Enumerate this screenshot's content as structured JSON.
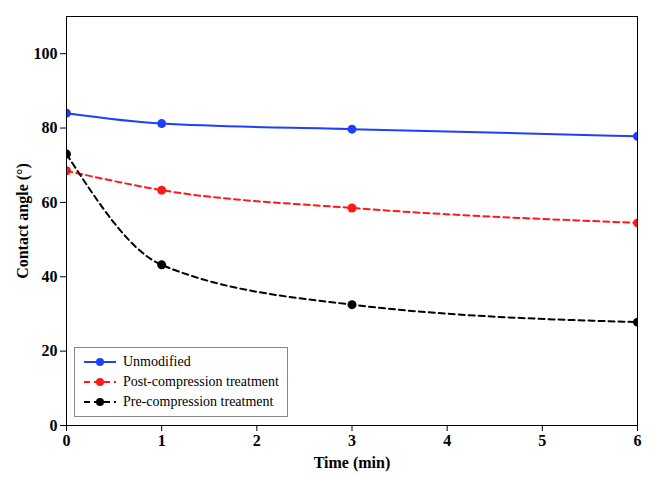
{
  "chart_data": {
    "type": "line",
    "x_label": "Time (min)",
    "y_label": "Contact angle (°)",
    "x": [
      0,
      1,
      3,
      6
    ],
    "series": [
      {
        "name": "Unmodified",
        "color": "#1f3fff",
        "line_style": "solid",
        "marker": "circle",
        "values": [
          84,
          81.2,
          79.7,
          77.8
        ]
      },
      {
        "name": "Post-compression treatment",
        "color": "#ff1a1a",
        "line_style": "dashed",
        "marker": "circle",
        "values": [
          68.5,
          63.3,
          58.5,
          54.5
        ]
      },
      {
        "name": "Pre-compression treatment",
        "color": "#000000",
        "line_style": "dashed",
        "marker": "circle",
        "values": [
          73,
          43.2,
          32.5,
          27.8
        ]
      }
    ],
    "xlim": [
      0,
      6
    ],
    "xticks": [
      0,
      1,
      2,
      3,
      4,
      5,
      6
    ],
    "ylim": [
      0,
      110
    ],
    "yticks": [
      0,
      20,
      40,
      60,
      80,
      100
    ],
    "legend": "lower left",
    "grid": false
  }
}
